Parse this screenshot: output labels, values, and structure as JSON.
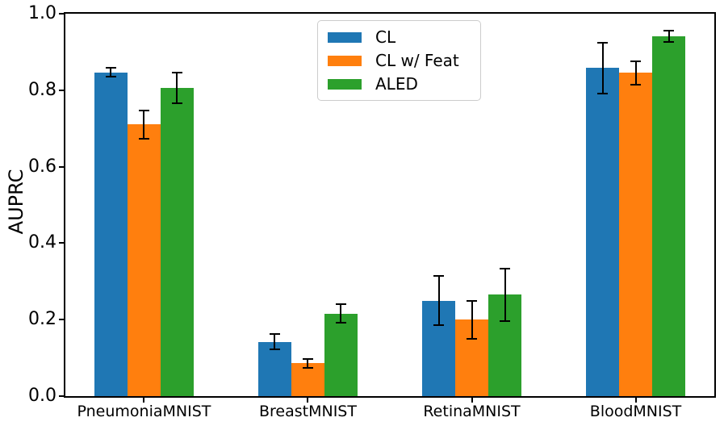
{
  "chart_data": {
    "type": "bar",
    "title": "",
    "xlabel": "",
    "ylabel": "AUPRC",
    "categories": [
      "PneumoniaMNIST",
      "BreastMNIST",
      "RetinaMNIST",
      "BloodMNIST"
    ],
    "series": [
      {
        "name": "CL",
        "color": "#1f77b4",
        "values": [
          0.847,
          0.142,
          0.25,
          0.858
        ],
        "errors": [
          0.012,
          0.02,
          0.065,
          0.066
        ]
      },
      {
        "name": "CL w/ Feat",
        "color": "#ff7f0e",
        "values": [
          0.71,
          0.086,
          0.2,
          0.845
        ],
        "errors": [
          0.037,
          0.012,
          0.05,
          0.031
        ]
      },
      {
        "name": "ALED",
        "color": "#2ca02c",
        "values": [
          0.806,
          0.216,
          0.265,
          0.941
        ],
        "errors": [
          0.04,
          0.024,
          0.068,
          0.014
        ]
      }
    ],
    "ylim": [
      0.0,
      1.0
    ],
    "yticks": [
      0.0,
      0.2,
      0.4,
      0.6,
      0.8,
      1.0
    ],
    "ytick_labels": [
      "0.0",
      "0.2",
      "0.4",
      "0.6",
      "0.8",
      "1.0"
    ],
    "grid": false,
    "legend_position": "upper center",
    "error_bar_color": "#000000",
    "spine_color": "#000000",
    "background_color": "#ffffff"
  }
}
